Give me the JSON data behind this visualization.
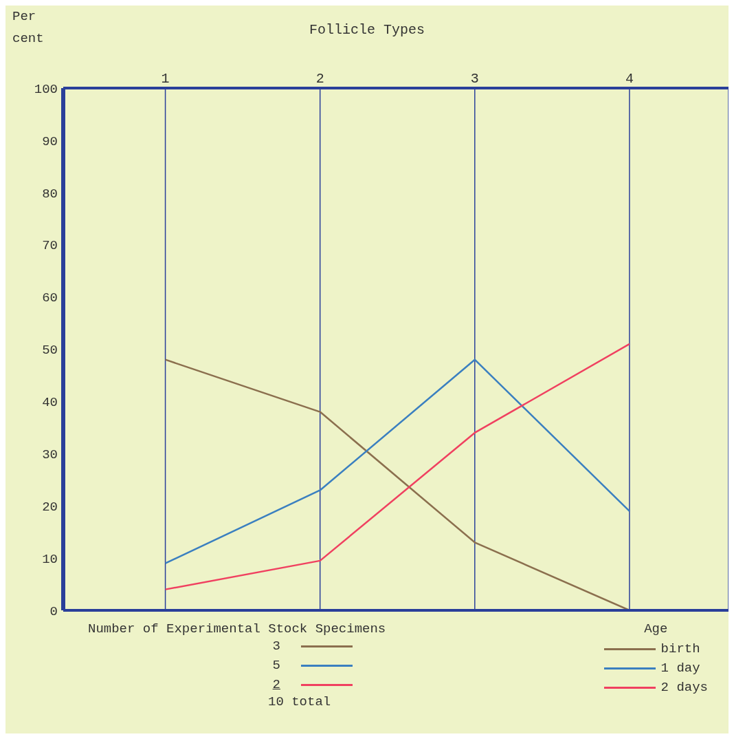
{
  "chart_data": {
    "type": "line",
    "xlabel": "Follicle Types",
    "ylabel": "Per cent",
    "categories": [
      "1",
      "2",
      "3",
      "4"
    ],
    "ylim": [
      0,
      100
    ],
    "yticks": [
      0,
      10,
      20,
      30,
      40,
      50,
      60,
      70,
      80,
      90,
      100
    ],
    "grid": "x",
    "legend": "bottom right",
    "legend_title": "Age",
    "marker": "none",
    "line_style": "solid",
    "series": [
      {
        "name": "birth",
        "color": "#8b6f4e",
        "values": [
          48,
          38,
          13,
          0
        ]
      },
      {
        "name": "1 day",
        "color": "#3a7fc0",
        "values": [
          9,
          23,
          48,
          19
        ]
      },
      {
        "name": "2 days",
        "color": "#f04060",
        "values": [
          4,
          9.5,
          34,
          51
        ]
      }
    ],
    "annotations": [
      "Number of Experimental Stock Specimens",
      "3",
      "5",
      "2",
      "10 total"
    ]
  }
}
